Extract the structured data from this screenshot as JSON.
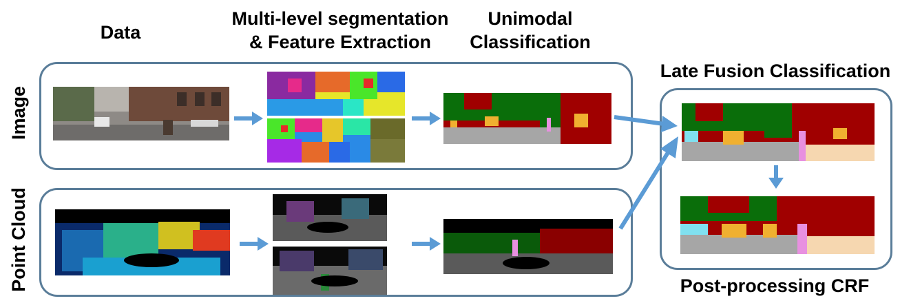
{
  "headers": {
    "data": "Data",
    "segmentation_line1": "Multi-level segmentation",
    "segmentation_line2": "& Feature Extraction",
    "unimodal_line1": "Unimodal",
    "unimodal_line2": "Classification",
    "late_fusion": "Late Fusion Classification",
    "post_processing": "Post-processing CRF"
  },
  "rows": {
    "image": "Image",
    "point_cloud": "Point Cloud"
  },
  "colors": {
    "box_border": "#5a7d99",
    "arrow": "#5b9bd5",
    "vegetation": "#0a6e0a",
    "building": "#a00000",
    "road": "#a6a6a6",
    "car": "#f0b030",
    "pedestrian": "#e890e0",
    "sidewalk": "#f6d7b0",
    "cyclist": "#80e0f0"
  }
}
